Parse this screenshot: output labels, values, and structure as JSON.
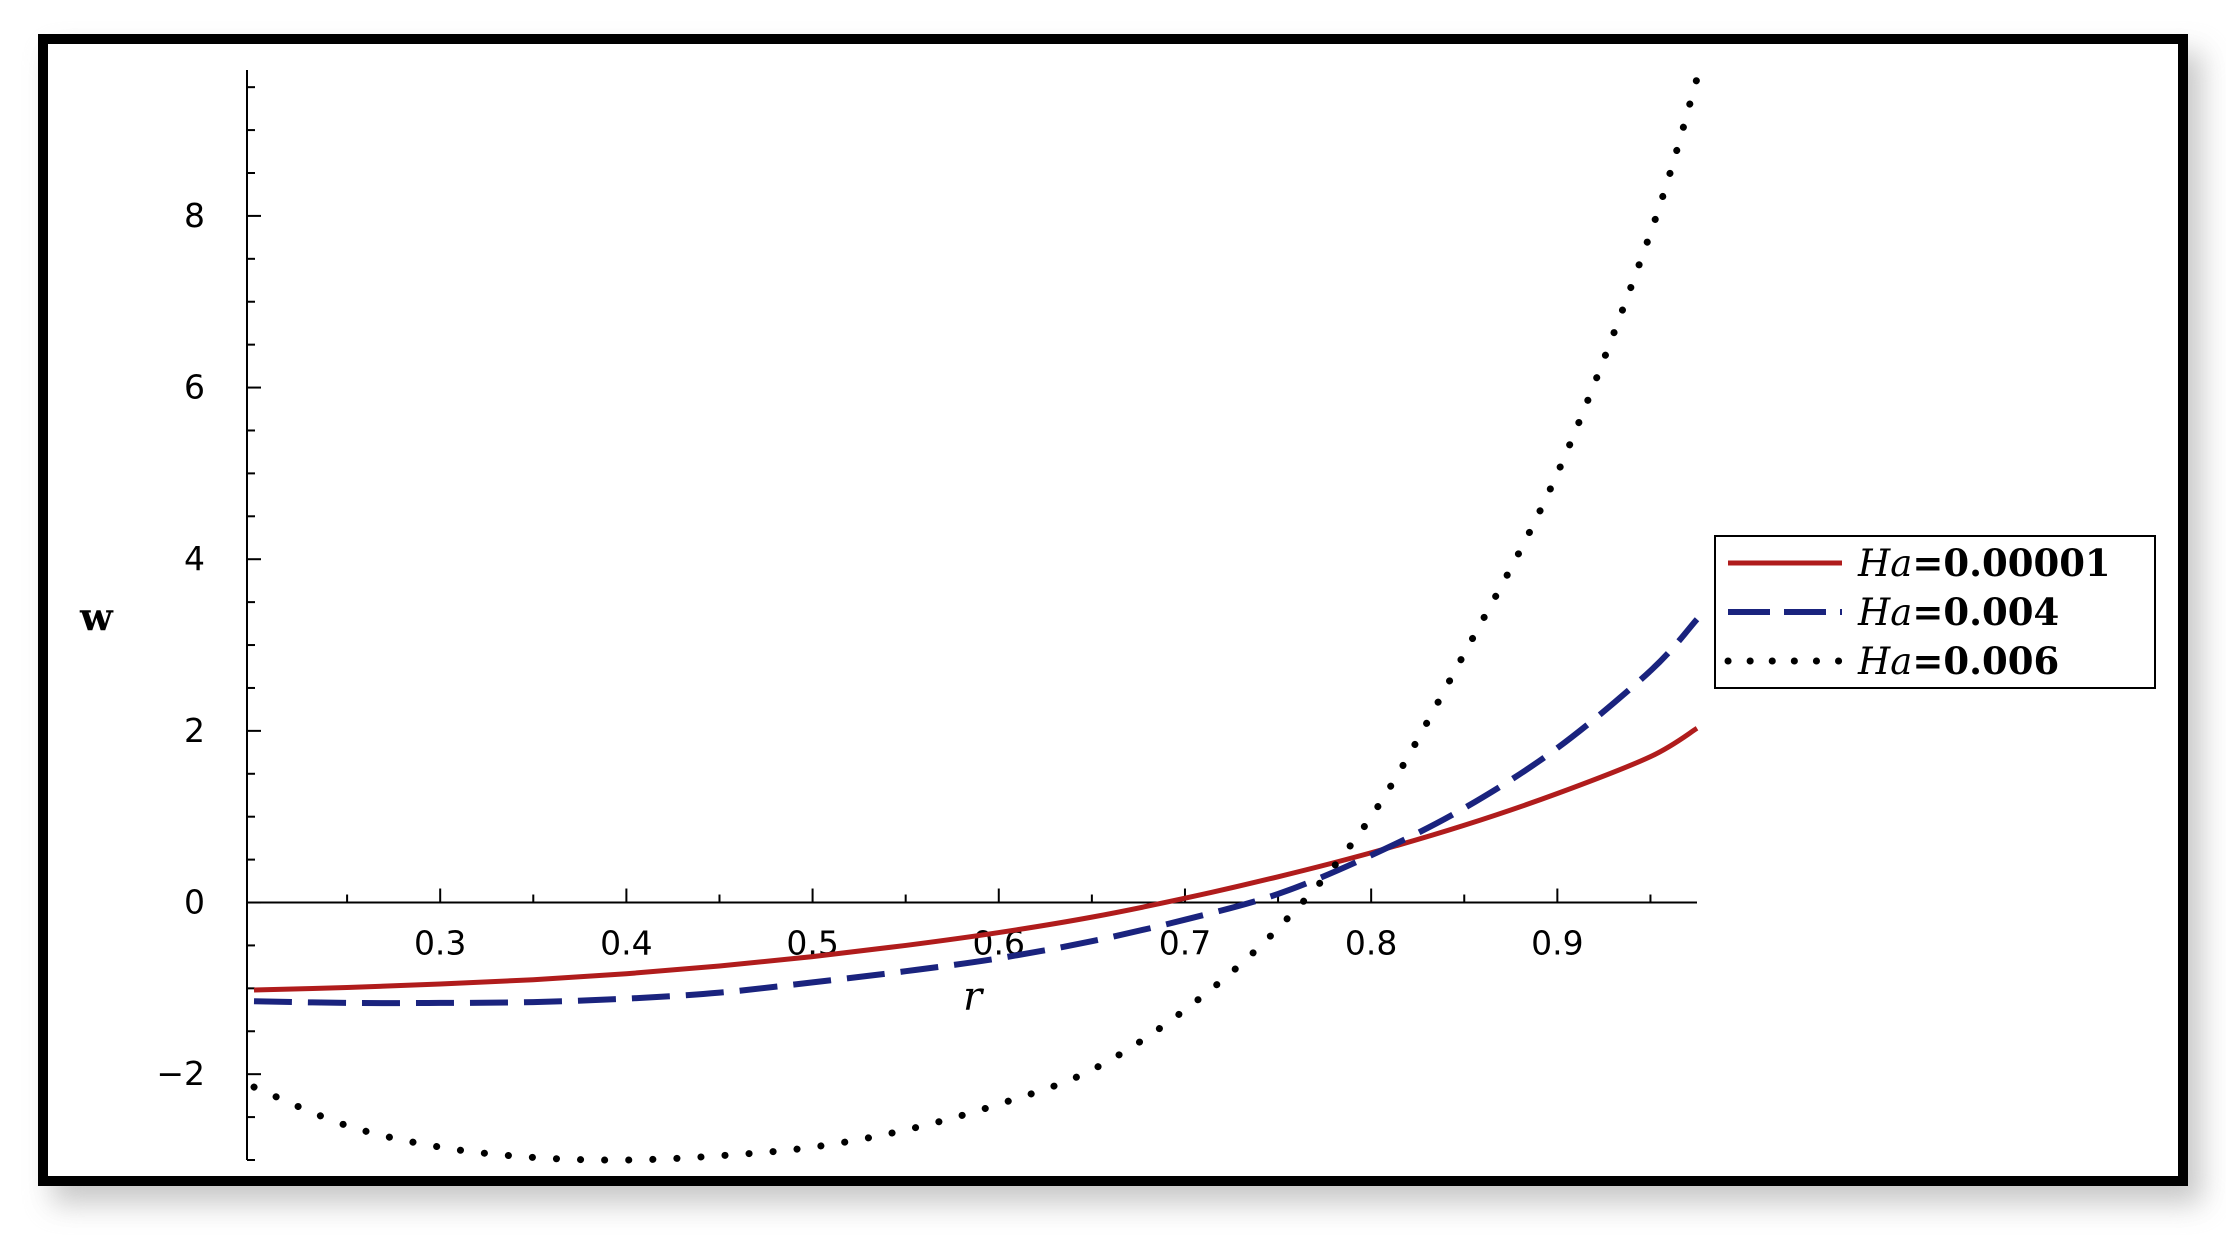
{
  "chart_data": {
    "type": "line",
    "title": "",
    "xlabel": "r",
    "ylabel": "w",
    "xlim": [
      0.2,
      0.975
    ],
    "ylim": [
      -3.0,
      9.7
    ],
    "x_ticks": [
      0.3,
      0.4,
      0.5,
      0.6,
      0.7,
      0.8,
      0.9
    ],
    "x_tick_labels": [
      "0.3",
      "0.4",
      "0.5",
      "0.6",
      "0.7",
      "0.8",
      "0.9"
    ],
    "y_ticks": [
      -2,
      0,
      2,
      4,
      6,
      8
    ],
    "y_tick_labels": [
      "−2",
      "0",
      "2",
      "4",
      "6",
      "8"
    ],
    "grid": false,
    "legend_position": "right",
    "series": [
      {
        "name": "Ha=0.00001",
        "name_param": "Ha",
        "name_value": "=0.00001",
        "color": "#b01c1c",
        "style": "solid",
        "x": [
          0.2,
          0.25,
          0.3,
          0.35,
          0.4,
          0.45,
          0.5,
          0.55,
          0.6,
          0.65,
          0.7,
          0.75,
          0.8,
          0.85,
          0.9,
          0.95,
          0.975
        ],
        "y": [
          -1.02,
          -0.99,
          -0.95,
          -0.9,
          -0.83,
          -0.74,
          -0.63,
          -0.5,
          -0.35,
          -0.17,
          0.05,
          0.3,
          0.58,
          0.9,
          1.27,
          1.7,
          2.03
        ]
      },
      {
        "name": "Ha=0.004",
        "name_param": "Ha",
        "name_value": "=0.004",
        "color": "#1a237e",
        "style": "dashed",
        "x": [
          0.2,
          0.25,
          0.3,
          0.35,
          0.4,
          0.45,
          0.5,
          0.55,
          0.6,
          0.65,
          0.7,
          0.75,
          0.8,
          0.85,
          0.9,
          0.95,
          0.975
        ],
        "y": [
          -1.15,
          -1.17,
          -1.17,
          -1.16,
          -1.12,
          -1.05,
          -0.93,
          -0.8,
          -0.65,
          -0.45,
          -0.2,
          0.1,
          0.55,
          1.1,
          1.8,
          2.7,
          3.3
        ]
      },
      {
        "name": "Ha=0.006",
        "name_param": "Ha",
        "name_value": "=0.006",
        "color": "#000000",
        "style": "dotted",
        "x": [
          0.2,
          0.25,
          0.3,
          0.35,
          0.4,
          0.45,
          0.5,
          0.55,
          0.6,
          0.65,
          0.7,
          0.75,
          0.8,
          0.85,
          0.9,
          0.95,
          0.975
        ],
        "y": [
          -2.15,
          -2.6,
          -2.85,
          -2.97,
          -3.0,
          -2.95,
          -2.85,
          -2.65,
          -2.35,
          -1.95,
          -1.25,
          -0.3,
          1.0,
          2.9,
          5.0,
          7.8,
          9.6
        ]
      }
    ]
  }
}
